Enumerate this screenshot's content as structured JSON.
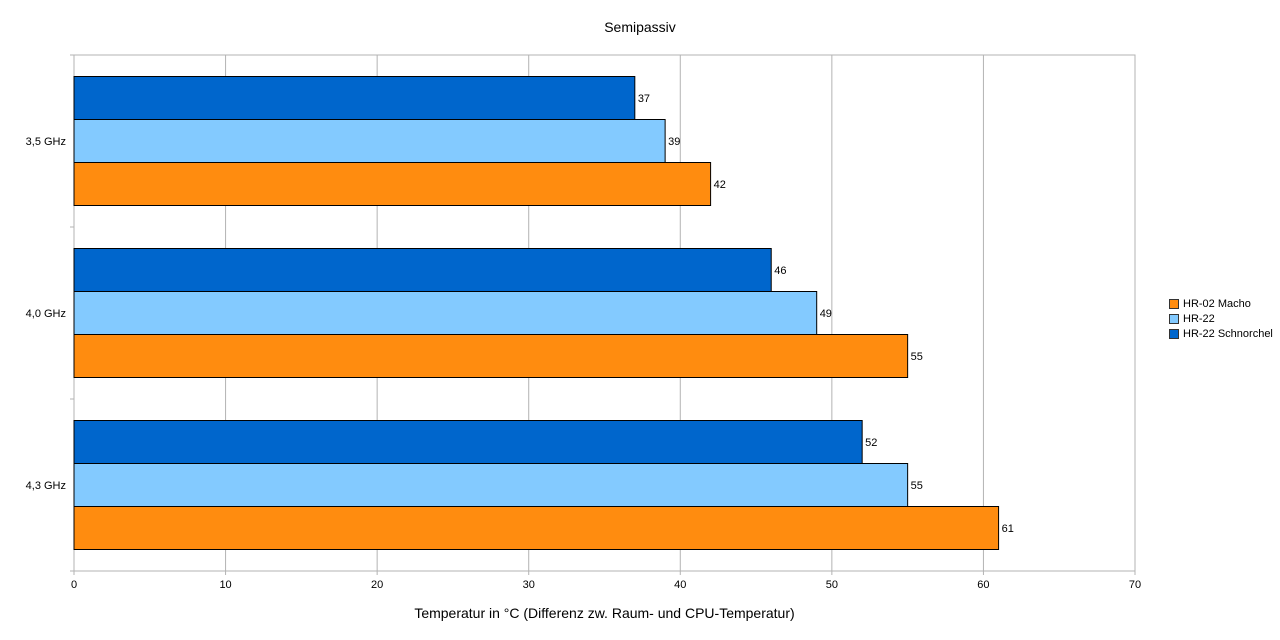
{
  "chart_data": {
    "type": "bar",
    "orientation": "horizontal",
    "title": "Semipassiv",
    "xlabel": "Temperatur in °C (Differenz zw. Raum- und CPU-Temperatur)",
    "ylabel": "",
    "xlim": [
      0,
      70
    ],
    "xticks": [
      "0",
      "10",
      "20",
      "30",
      "40",
      "50",
      "60",
      "70"
    ],
    "grid": true,
    "legend_position": "right",
    "categories": [
      "3,5 GHz",
      "4,0 GHz",
      "4,3 GHz"
    ],
    "series": [
      {
        "name": "HR-02 Macho",
        "color": "#ff8c0f",
        "values": [
          42,
          55,
          61
        ]
      },
      {
        "name": "HR-22",
        "color": "#83caff",
        "values": [
          39,
          49,
          55
        ]
      },
      {
        "name": "HR-22 Schnorchel",
        "color": "#0066cc",
        "values": [
          37,
          46,
          52
        ]
      }
    ]
  }
}
